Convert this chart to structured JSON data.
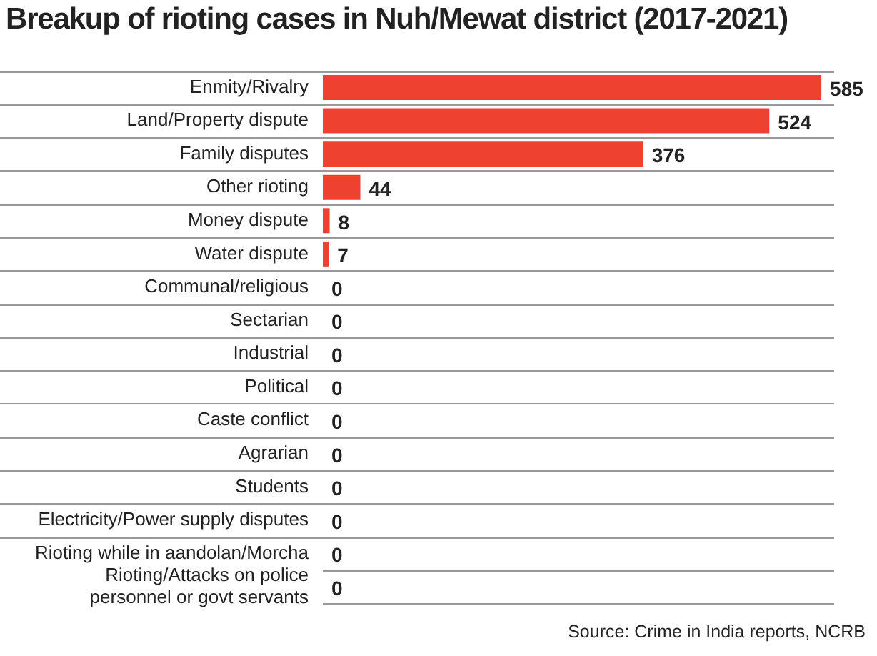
{
  "chart_data": {
    "type": "bar",
    "orientation": "horizontal",
    "title": "Breakup of rioting cases in Nuh/Mewat district (2017-2021)",
    "categories": [
      "Enmity/Rivalry",
      "Land/Property dispute",
      "Family disputes",
      "Other rioting",
      "Money dispute",
      "Water dispute",
      "Communal/religious",
      "Sectarian",
      "Industrial",
      "Political",
      "Caste conflict",
      "Agrarian",
      "Students",
      "Electricity/Power supply disputes",
      "Rioting while in aandolan/Morcha",
      "Rioting/Attacks on police personnel or govt servants"
    ],
    "values": [
      585,
      524,
      376,
      44,
      8,
      7,
      0,
      0,
      0,
      0,
      0,
      0,
      0,
      0,
      0,
      0
    ],
    "color": "#ee4130",
    "data_labels": true,
    "grid": "y",
    "legend": false,
    "annotations": [
      "Source: Crime in India reports, NCRB"
    ]
  }
}
